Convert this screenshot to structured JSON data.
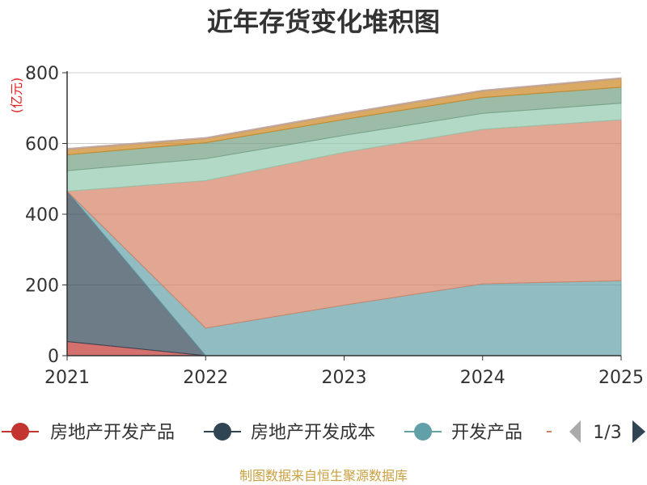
{
  "chart_data": {
    "type": "area",
    "stacked": true,
    "title": "近年存货变化堆积图",
    "unit_label": "(亿元)",
    "x": [
      "2021",
      "2022",
      "2023",
      "2024",
      "2025"
    ],
    "ylim": [
      0,
      800
    ],
    "yticks": [
      "0",
      "200",
      "400",
      "600",
      "800"
    ],
    "grid": true,
    "series": [
      {
        "name": "房地产开发产品",
        "color": "#c23531",
        "values": [
          40,
          0,
          0,
          0,
          0
        ]
      },
      {
        "name": "房地产开发成本",
        "color": "#2f4554",
        "values": [
          425,
          0,
          0,
          0,
          0
        ]
      },
      {
        "name": "开发产品",
        "color": "#61a0a8",
        "values": [
          0,
          78,
          143,
          203,
          212
        ]
      },
      {
        "color": "#d48265",
        "values": [
          0,
          417,
          432,
          437,
          455
        ]
      },
      {
        "color": "#91c7ae",
        "values": [
          58,
          62,
          48,
          45,
          47
        ]
      },
      {
        "color": "#749f83",
        "values": [
          45,
          45,
          45,
          45,
          45
        ]
      },
      {
        "color": "#ca8622",
        "values": [
          15,
          12,
          15,
          18,
          24
        ]
      },
      {
        "color": "#bda29a",
        "values": [
          3,
          3,
          3,
          3,
          3
        ]
      }
    ],
    "legend": {
      "placement": "bottom",
      "page": "1/3"
    },
    "source_note": "制图数据来自恒生聚源数据库"
  }
}
